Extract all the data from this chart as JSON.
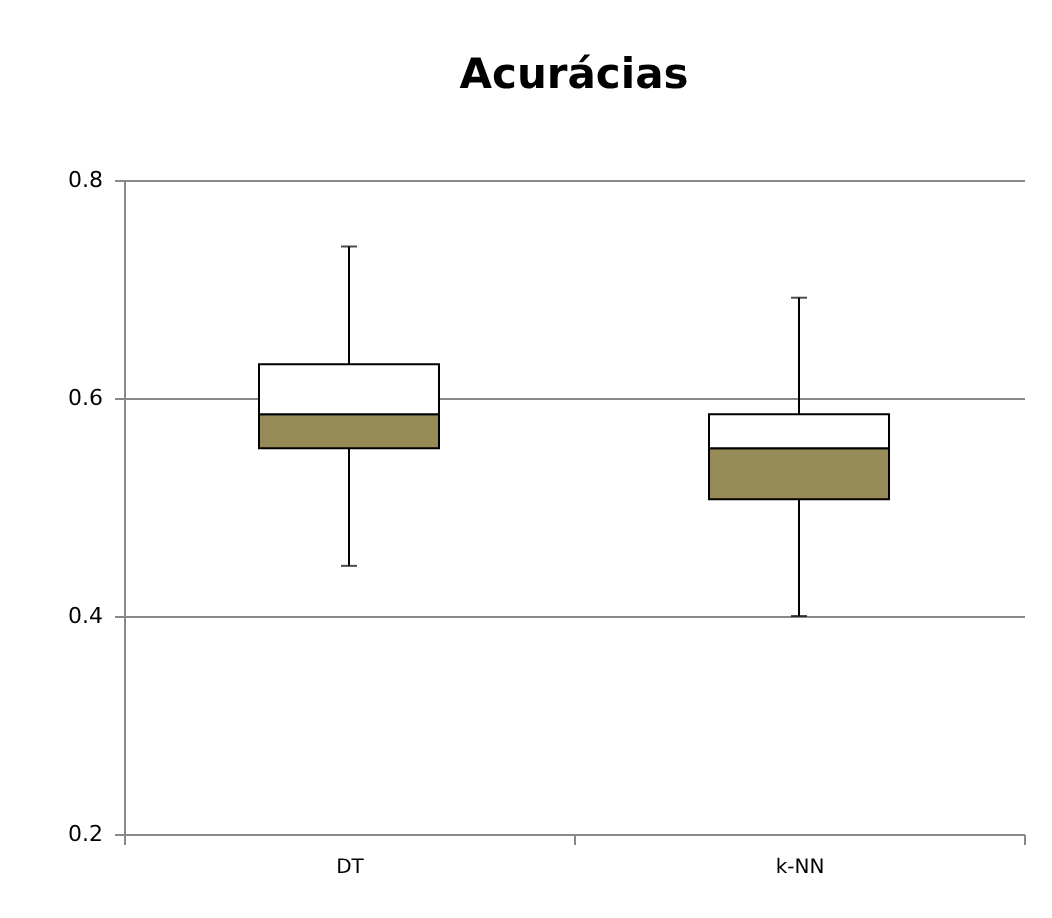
{
  "chart_data": {
    "type": "box",
    "title": "Acurácias",
    "categories": [
      "DT",
      "k-NN"
    ],
    "series": [
      {
        "color": "#968b57",
        "boxes": [
          {
            "low": 0.446,
            "q1": 0.554,
            "median": 0.585,
            "q3": 0.631,
            "high": 0.739
          },
          {
            "low": 0.4,
            "q1": 0.507,
            "median": 0.554,
            "q3": 0.585,
            "high": 0.692
          }
        ]
      }
    ],
    "ylim": [
      0.2,
      0.8
    ],
    "yticks": [
      0.2,
      0.4,
      0.6,
      0.8
    ],
    "grid": "y"
  }
}
